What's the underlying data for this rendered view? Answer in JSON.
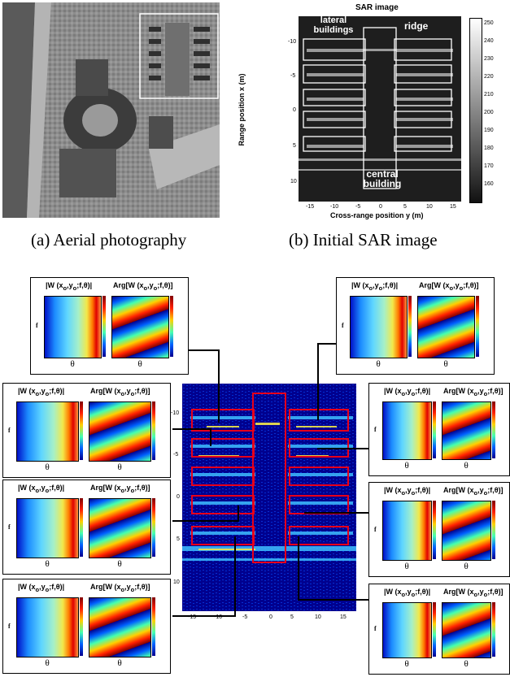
{
  "top": {
    "aerial_caption": "(a) Aerial photography",
    "sar_caption": "(b) Initial SAR image",
    "sar_title": "SAR image",
    "ylabel": "Range position x (m)",
    "xlabel": "Cross-range position y (m)",
    "annotations": {
      "lateral": "lateral\nbuildings",
      "ridge": "ridge",
      "central": "central\nbuilding"
    },
    "yticks": [
      "-10",
      "-5",
      "0",
      "5",
      "10"
    ],
    "xticks": [
      "-15",
      "-10",
      "-5",
      "0",
      "5",
      "10",
      "15"
    ],
    "cbar_ticks": [
      "250",
      "240",
      "230",
      "220",
      "210",
      "200",
      "190",
      "180",
      "170",
      "160"
    ]
  },
  "bottom": {
    "yticks": [
      "-10",
      "-5",
      "0",
      "5",
      "10"
    ],
    "xticks": [
      "-15",
      "-10",
      "-5",
      "0",
      "5",
      "10",
      "15"
    ],
    "panel_left_title": "|W (x",
    "panel_right_title": "Arg[W (x",
    "theta": "θ",
    "f_label": "f"
  },
  "colors": {
    "sar_bg": "#1b1b1b",
    "jet_dark": "#00008f",
    "highlight_box": "#e8001a"
  }
}
